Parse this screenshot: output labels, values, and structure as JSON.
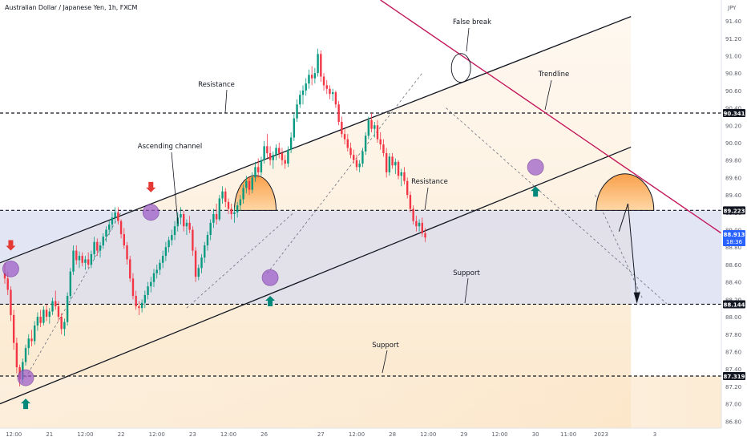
{
  "header": {
    "symbol": "Australian Dollar / Japanese Yen, 1h, FXCM"
  },
  "price_axis": {
    "currency": "JPY"
  },
  "chart_data": {
    "type": "candlestick",
    "ylim": [
      86.72,
      91.64
    ],
    "y_ticks": [
      91.4,
      91.2,
      91.0,
      90.8,
      90.6,
      90.4,
      90.2,
      90.0,
      89.8,
      89.6,
      89.4,
      89.2,
      89.0,
      88.8,
      88.6,
      88.4,
      88.2,
      88.0,
      87.8,
      87.6,
      87.4,
      87.2,
      87.0,
      86.8
    ],
    "y_tick_labels": [
      "91.40",
      "91.20",
      "91.00",
      "90.80",
      "90.60",
      "90.40",
      "90.20",
      "90.00",
      "89.80",
      "89.60",
      "89.40",
      "89.20",
      "89.00",
      "88.80",
      "88.60",
      "88.40",
      "88.20",
      "88.00",
      "87.80",
      "87.60",
      "87.40",
      "87.20",
      "87.00",
      "86.80"
    ],
    "x_ticks": [
      {
        "label": "12:00",
        "bar": 3
      },
      {
        "label": "21",
        "bar": 15
      },
      {
        "label": "12:00",
        "bar": 27
      },
      {
        "label": "22",
        "bar": 39
      },
      {
        "label": "12:00",
        "bar": 51
      },
      {
        "label": "23",
        "bar": 63
      },
      {
        "label": "12:00",
        "bar": 75
      },
      {
        "label": "26",
        "bar": 87
      },
      {
        "label": "27",
        "bar": 106
      },
      {
        "label": "12:00",
        "bar": 118
      },
      {
        "label": "28",
        "bar": 130
      },
      {
        "label": "12:00",
        "bar": 142
      },
      {
        "label": "29",
        "bar": 154
      },
      {
        "label": "12:00",
        "bar": 166
      },
      {
        "label": "30",
        "bar": 178
      },
      {
        "label": "11:00",
        "bar": 189
      },
      {
        "label": "2023",
        "bar": 200
      },
      {
        "label": "3",
        "bar": 218
      }
    ],
    "price_labels": [
      {
        "text": "90.341",
        "price": 90.341
      },
      {
        "text": "89.223",
        "price": 89.223
      },
      {
        "text": "88.144",
        "price": 88.144
      },
      {
        "text": "87.319",
        "price": 87.319
      }
    ],
    "last_price": {
      "price": "88.913",
      "countdown": "18:36",
      "value": 88.913
    },
    "horizontal_levels": [
      90.341,
      89.223,
      88.144,
      87.319
    ],
    "shaded_zone": [
      88.144,
      89.223
    ],
    "candles": [
      [
        88.5,
        88.62,
        88.38,
        88.44
      ],
      [
        88.44,
        88.52,
        88.25,
        88.31
      ],
      [
        88.31,
        88.35,
        87.95,
        88.02
      ],
      [
        88.02,
        88.08,
        87.62,
        87.7
      ],
      [
        87.7,
        87.76,
        87.35,
        87.42
      ],
      [
        87.42,
        87.45,
        87.2,
        87.28
      ],
      [
        87.28,
        87.52,
        87.24,
        87.48
      ],
      [
        87.48,
        87.68,
        87.44,
        87.64
      ],
      [
        87.64,
        87.8,
        87.56,
        87.75
      ],
      [
        87.75,
        87.85,
        87.66,
        87.72
      ],
      [
        87.72,
        87.95,
        87.68,
        87.9
      ],
      [
        87.9,
        88.05,
        87.84,
        88.0
      ],
      [
        88.0,
        88.08,
        87.88,
        87.93
      ],
      [
        87.93,
        88.12,
        87.9,
        88.08
      ],
      [
        88.08,
        88.14,
        87.95,
        88.0
      ],
      [
        88.0,
        88.1,
        87.92,
        88.06
      ],
      [
        88.06,
        88.22,
        88.02,
        88.18
      ],
      [
        88.18,
        88.3,
        88.08,
        88.12
      ],
      [
        88.12,
        88.18,
        87.95,
        88.0
      ],
      [
        88.0,
        88.04,
        87.8,
        87.86
      ],
      [
        87.86,
        87.98,
        87.78,
        87.94
      ],
      [
        87.94,
        88.28,
        87.9,
        88.24
      ],
      [
        88.24,
        88.56,
        88.2,
        88.52
      ],
      [
        88.52,
        88.82,
        88.48,
        88.76
      ],
      [
        88.76,
        88.82,
        88.6,
        88.65
      ],
      [
        88.65,
        88.75,
        88.56,
        88.7
      ],
      [
        88.7,
        88.74,
        88.58,
        88.62
      ],
      [
        88.62,
        88.7,
        88.54,
        88.66
      ],
      [
        88.66,
        88.74,
        88.56,
        88.6
      ],
      [
        88.6,
        88.76,
        88.56,
        88.72
      ],
      [
        88.72,
        88.92,
        88.66,
        88.86
      ],
      [
        88.86,
        88.9,
        88.7,
        88.76
      ],
      [
        88.76,
        88.86,
        88.68,
        88.82
      ],
      [
        88.82,
        88.96,
        88.78,
        88.92
      ],
      [
        88.92,
        89.04,
        88.86,
        89.0
      ],
      [
        89.0,
        89.1,
        88.94,
        89.06
      ],
      [
        89.06,
        89.2,
        89.0,
        89.14
      ],
      [
        89.14,
        89.26,
        89.08,
        89.2
      ],
      [
        89.2,
        89.26,
        89.06,
        89.1
      ],
      [
        89.1,
        89.12,
        88.9,
        88.95
      ],
      [
        88.95,
        89.02,
        88.78,
        88.82
      ],
      [
        88.82,
        88.86,
        88.6,
        88.66
      ],
      [
        88.66,
        88.7,
        88.4,
        88.44
      ],
      [
        88.44,
        88.5,
        88.2,
        88.24
      ],
      [
        88.24,
        88.3,
        88.08,
        88.12
      ],
      [
        88.12,
        88.18,
        88.02,
        88.1
      ],
      [
        88.1,
        88.2,
        88.05,
        88.16
      ],
      [
        88.16,
        88.3,
        88.1,
        88.25
      ],
      [
        88.25,
        88.4,
        88.2,
        88.35
      ],
      [
        88.35,
        88.46,
        88.28,
        88.4
      ],
      [
        88.4,
        88.55,
        88.34,
        88.5
      ],
      [
        88.5,
        88.6,
        88.44,
        88.54
      ],
      [
        88.54,
        88.66,
        88.48,
        88.62
      ],
      [
        88.62,
        88.76,
        88.56,
        88.7
      ],
      [
        88.7,
        88.86,
        88.64,
        88.8
      ],
      [
        88.8,
        88.92,
        88.74,
        88.88
      ],
      [
        88.88,
        89.0,
        88.82,
        88.94
      ],
      [
        88.94,
        89.1,
        88.88,
        89.04
      ],
      [
        89.04,
        89.2,
        88.98,
        89.14
      ],
      [
        89.14,
        89.26,
        89.06,
        89.18
      ],
      [
        89.18,
        89.22,
        88.98,
        89.04
      ],
      [
        89.04,
        89.12,
        88.94,
        89.08
      ],
      [
        89.08,
        89.16,
        88.96,
        89.0
      ],
      [
        89.0,
        89.04,
        88.7,
        88.76
      ],
      [
        88.76,
        88.8,
        88.4,
        88.46
      ],
      [
        88.46,
        88.6,
        88.42,
        88.56
      ],
      [
        88.56,
        88.72,
        88.5,
        88.68
      ],
      [
        88.68,
        88.86,
        88.62,
        88.82
      ],
      [
        88.82,
        88.98,
        88.76,
        88.94
      ],
      [
        88.94,
        89.12,
        88.88,
        89.08
      ],
      [
        89.08,
        89.24,
        89.02,
        89.18
      ],
      [
        89.18,
        89.3,
        89.06,
        89.12
      ],
      [
        89.12,
        89.4,
        89.1,
        89.36
      ],
      [
        89.36,
        89.5,
        89.3,
        89.44
      ],
      [
        89.44,
        89.48,
        89.26,
        89.32
      ],
      [
        89.32,
        89.36,
        89.18,
        89.24
      ],
      [
        89.24,
        89.3,
        89.12,
        89.18
      ],
      [
        89.18,
        89.26,
        89.08,
        89.2
      ],
      [
        89.2,
        89.32,
        89.14,
        89.28
      ],
      [
        89.28,
        89.4,
        89.22,
        89.35
      ],
      [
        89.35,
        89.52,
        89.3,
        89.48
      ],
      [
        89.48,
        89.62,
        89.42,
        89.56
      ],
      [
        89.56,
        89.6,
        89.4,
        89.46
      ],
      [
        89.46,
        89.66,
        89.42,
        89.6
      ],
      [
        89.6,
        89.78,
        89.55,
        89.72
      ],
      [
        89.72,
        89.82,
        89.6,
        89.66
      ],
      [
        89.66,
        89.84,
        89.62,
        89.8
      ],
      [
        89.8,
        90.02,
        89.76,
        89.96
      ],
      [
        89.96,
        90.1,
        89.82,
        89.88
      ],
      [
        89.88,
        89.96,
        89.74,
        89.8
      ],
      [
        89.8,
        89.9,
        89.7,
        89.86
      ],
      [
        89.86,
        89.98,
        89.8,
        89.94
      ],
      [
        89.94,
        90.0,
        89.82,
        89.88
      ],
      [
        89.88,
        89.94,
        89.74,
        89.8
      ],
      [
        89.8,
        89.86,
        89.7,
        89.76
      ],
      [
        89.76,
        89.96,
        89.72,
        89.92
      ],
      [
        89.92,
        90.12,
        89.88,
        90.06
      ],
      [
        90.06,
        90.34,
        90.02,
        90.28
      ],
      [
        90.28,
        90.5,
        90.24,
        90.44
      ],
      [
        90.44,
        90.6,
        90.4,
        90.55
      ],
      [
        90.55,
        90.66,
        90.44,
        90.6
      ],
      [
        90.6,
        90.74,
        90.54,
        90.68
      ],
      [
        90.68,
        90.84,
        90.62,
        90.78
      ],
      [
        90.78,
        90.88,
        90.66,
        90.74
      ],
      [
        90.74,
        90.86,
        90.68,
        90.8
      ],
      [
        90.8,
        91.08,
        90.76,
        91.02
      ],
      [
        91.02,
        91.06,
        90.7,
        90.76
      ],
      [
        90.76,
        90.8,
        90.6,
        90.66
      ],
      [
        90.66,
        90.72,
        90.56,
        90.62
      ],
      [
        90.62,
        90.66,
        90.5,
        90.56
      ],
      [
        90.56,
        90.62,
        90.48,
        90.58
      ],
      [
        90.58,
        90.6,
        90.4,
        90.44
      ],
      [
        90.44,
        90.48,
        90.2,
        90.24
      ],
      [
        90.24,
        90.3,
        90.06,
        90.1
      ],
      [
        90.1,
        90.16,
        89.98,
        90.04
      ],
      [
        90.04,
        90.1,
        89.9,
        89.94
      ],
      [
        89.94,
        90.0,
        89.82,
        89.86
      ],
      [
        89.86,
        89.92,
        89.76,
        89.8
      ],
      [
        89.8,
        89.86,
        89.68,
        89.72
      ],
      [
        89.72,
        89.8,
        89.66,
        89.76
      ],
      [
        89.76,
        89.94,
        89.72,
        89.9
      ],
      [
        89.9,
        90.12,
        89.86,
        90.08
      ],
      [
        90.08,
        90.3,
        90.04,
        90.26
      ],
      [
        90.26,
        90.34,
        90.12,
        90.16
      ],
      [
        90.16,
        90.24,
        90.06,
        90.2
      ],
      [
        90.2,
        90.26,
        90.0,
        90.04
      ],
      [
        90.04,
        90.12,
        89.92,
        89.98
      ],
      [
        89.98,
        90.04,
        89.84,
        89.88
      ],
      [
        89.88,
        89.94,
        89.6,
        89.66
      ],
      [
        89.66,
        89.88,
        89.62,
        89.84
      ],
      [
        89.84,
        89.88,
        89.7,
        89.74
      ],
      [
        89.74,
        89.82,
        89.64,
        89.78
      ],
      [
        89.78,
        89.8,
        89.58,
        89.62
      ],
      [
        89.62,
        89.7,
        89.5,
        89.66
      ],
      [
        89.66,
        89.72,
        89.52,
        89.56
      ],
      [
        89.56,
        89.6,
        89.36,
        89.4
      ],
      [
        89.4,
        89.44,
        89.2,
        89.24
      ],
      [
        89.24,
        89.28,
        89.06,
        89.1
      ],
      [
        89.1,
        89.16,
        88.98,
        89.04
      ],
      [
        89.04,
        89.12,
        88.98,
        89.08
      ],
      [
        89.08,
        89.14,
        88.92,
        88.96
      ],
      [
        88.96,
        89.02,
        88.86,
        88.91
      ]
    ],
    "annotations": [
      {
        "text": "Resistance",
        "kind": "label"
      },
      {
        "text": "Ascending channel",
        "kind": "label"
      },
      {
        "text": "False break",
        "kind": "label"
      },
      {
        "text": "Trendline",
        "kind": "label"
      },
      {
        "text": "Resistance",
        "kind": "label"
      },
      {
        "text": "Support",
        "kind": "label"
      },
      {
        "text": "Support",
        "kind": "label"
      }
    ],
    "colors": {
      "up": "#089981",
      "down": "#f23645",
      "channel": "#131722",
      "trendline": "#c2185b",
      "touch_marker": "#9c5cc8",
      "zone": "#d7dbef",
      "warm": "#fbe3c2",
      "arrow_down": "#e53935",
      "arrow_up": "#00897b",
      "dome": "#f9a04b"
    }
  }
}
